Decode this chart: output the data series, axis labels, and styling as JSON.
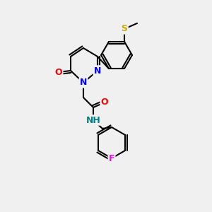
{
  "bg_color": "#f0f0f0",
  "bond_color": "#000000",
  "bond_width": 1.5,
  "atom_colors": {
    "N": "#0000ff",
    "O": "#ff0000",
    "F": "#ff00ff",
    "S": "#ccaa00",
    "H": "#008080",
    "C": "#000000"
  },
  "font_size": 9
}
